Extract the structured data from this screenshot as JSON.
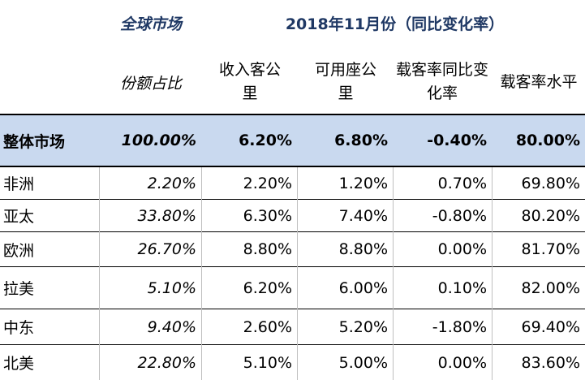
{
  "header": {
    "market_label": "全球市场",
    "period_label": "2018年11月份（同比变化率）",
    "share_label": "份额占比",
    "columns": [
      "收入客公里",
      "可用座公里",
      "载客率同比变化率",
      "载客率水平"
    ]
  },
  "overall": {
    "name": "整体市场",
    "share": "100.00%",
    "rpk": "6.20%",
    "ask": "6.80%",
    "plf_change": "-0.40%",
    "plf": "80.00%"
  },
  "rows": [
    {
      "name": "非洲",
      "share": "2.20%",
      "rpk": "2.20%",
      "ask": "1.20%",
      "plf_change": "0.70%",
      "plf": "69.80%"
    },
    {
      "name": "亚太",
      "share": "33.80%",
      "rpk": "6.30%",
      "ask": "7.40%",
      "plf_change": "-0.80%",
      "plf": "80.20%"
    },
    {
      "name": "欧洲",
      "share": "26.70%",
      "rpk": "8.80%",
      "ask": "8.80%",
      "plf_change": "0.00%",
      "plf": "81.70%"
    },
    {
      "name": "拉美",
      "share": "5.10%",
      "rpk": "6.20%",
      "ask": "6.00%",
      "plf_change": "0.10%",
      "plf": "82.00%"
    },
    {
      "name": "中东",
      "share": "9.40%",
      "rpk": "2.60%",
      "ask": "5.20%",
      "plf_change": "-1.80%",
      "plf": "69.40%"
    },
    {
      "name": "北美",
      "share": "22.80%",
      "rpk": "5.10%",
      "ask": "5.00%",
      "plf_change": "0.00%",
      "plf": "83.60%"
    }
  ],
  "colors": {
    "band": "#c9d9ef",
    "title": "#1f3864"
  }
}
